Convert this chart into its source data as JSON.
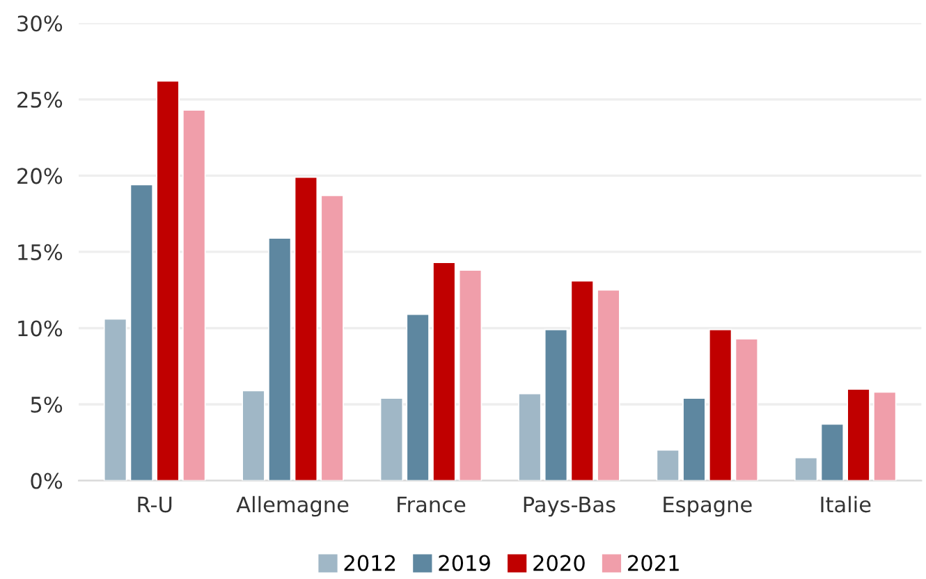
{
  "chart_data": {
    "type": "bar",
    "categories": [
      "R-U",
      "Allemagne",
      "France",
      "Pays-Bas",
      "Espagne",
      "Italie"
    ],
    "series": [
      {
        "name": "2012",
        "color": "#a0b7c6",
        "values": [
          10.6,
          5.9,
          5.4,
          5.7,
          2.0,
          1.5
        ]
      },
      {
        "name": "2019",
        "color": "#5e87a0",
        "values": [
          19.4,
          15.9,
          10.9,
          9.9,
          5.4,
          3.7
        ]
      },
      {
        "name": "2020",
        "color": "#c00000",
        "values": [
          26.2,
          19.9,
          14.3,
          13.1,
          9.9,
          6.0
        ]
      },
      {
        "name": "2021",
        "color": "#f09eaa",
        "values": [
          24.3,
          18.7,
          13.8,
          12.5,
          9.3,
          5.8
        ]
      }
    ],
    "ylim": [
      0,
      30
    ],
    "yticks": [
      {
        "value": 0,
        "label": "0%"
      },
      {
        "value": 5,
        "label": "5%"
      },
      {
        "value": 10,
        "label": "10%"
      },
      {
        "value": 15,
        "label": "15%"
      },
      {
        "value": 20,
        "label": "20%"
      },
      {
        "value": 25,
        "label": "25%"
      },
      {
        "value": 30,
        "label": "30%"
      }
    ],
    "grid": "y",
    "legend": "bottom"
  }
}
